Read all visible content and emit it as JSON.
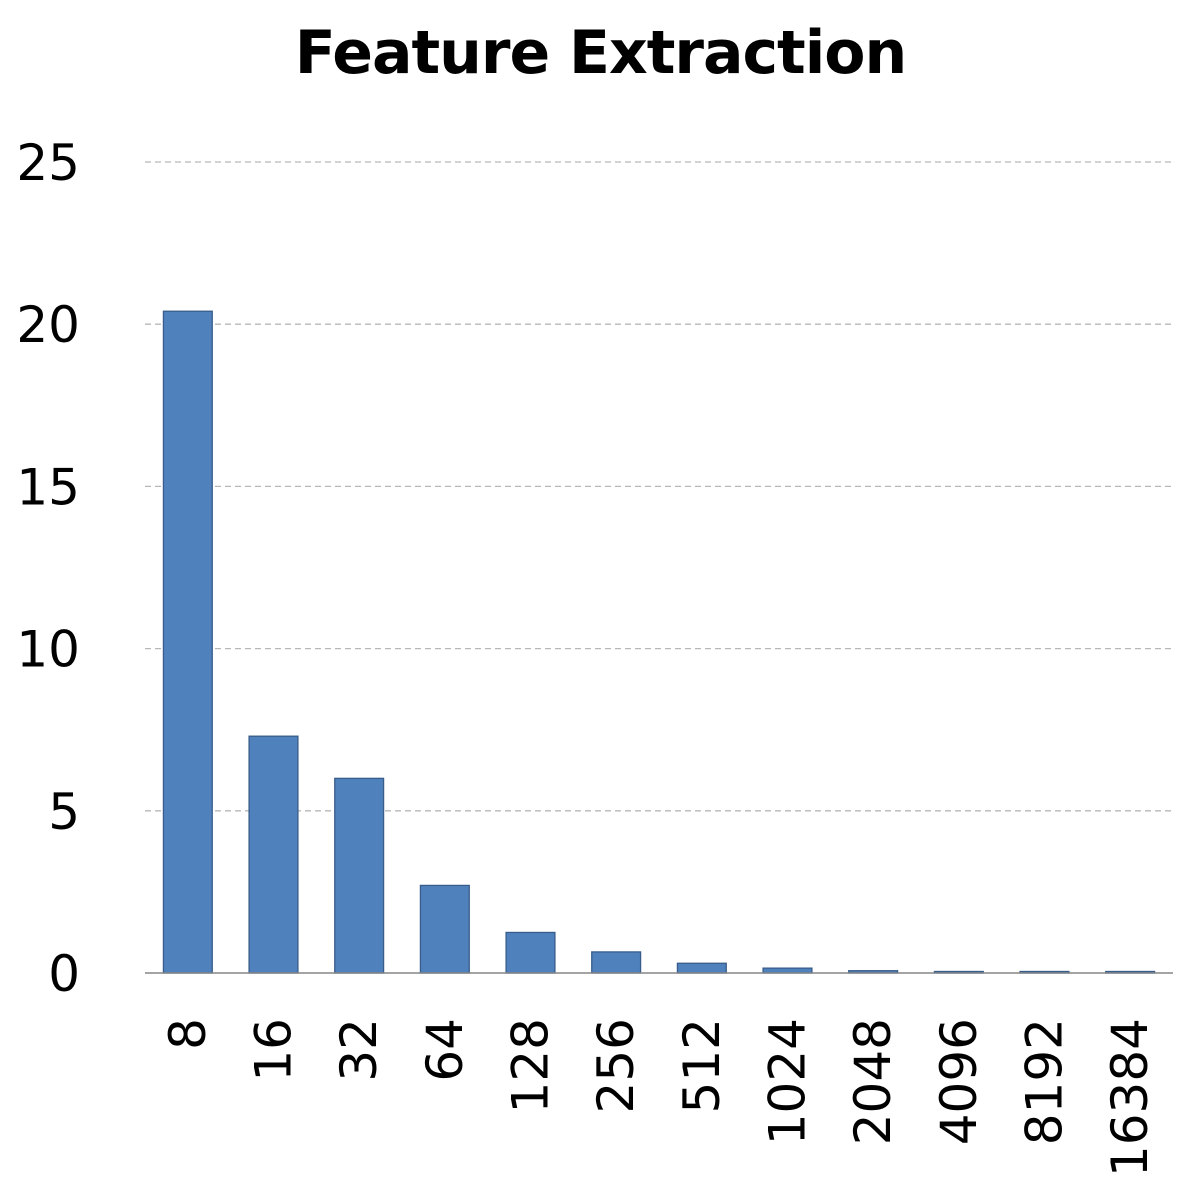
{
  "chart_data": {
    "type": "bar",
    "title": "Feature Extraction",
    "xlabel": "",
    "ylabel": "",
    "categories": [
      "8",
      "16",
      "32",
      "64",
      "128",
      "256",
      "512",
      "1024",
      "2048",
      "4096",
      "8192",
      "16384"
    ],
    "values": [
      20.4,
      7.3,
      6.0,
      2.7,
      1.25,
      0.65,
      0.3,
      0.15,
      0.07,
      0.03,
      0.02,
      0.01
    ],
    "ylim": [
      0,
      25
    ],
    "yticks": [
      "0",
      "5",
      "10",
      "15",
      "20",
      "25"
    ],
    "grid": true,
    "legend": "none",
    "colors": {
      "bar_fill": "#4f81bd",
      "bar_stroke": "#385d8a",
      "grid": "#b7b7b7",
      "axis": "#868686"
    }
  }
}
